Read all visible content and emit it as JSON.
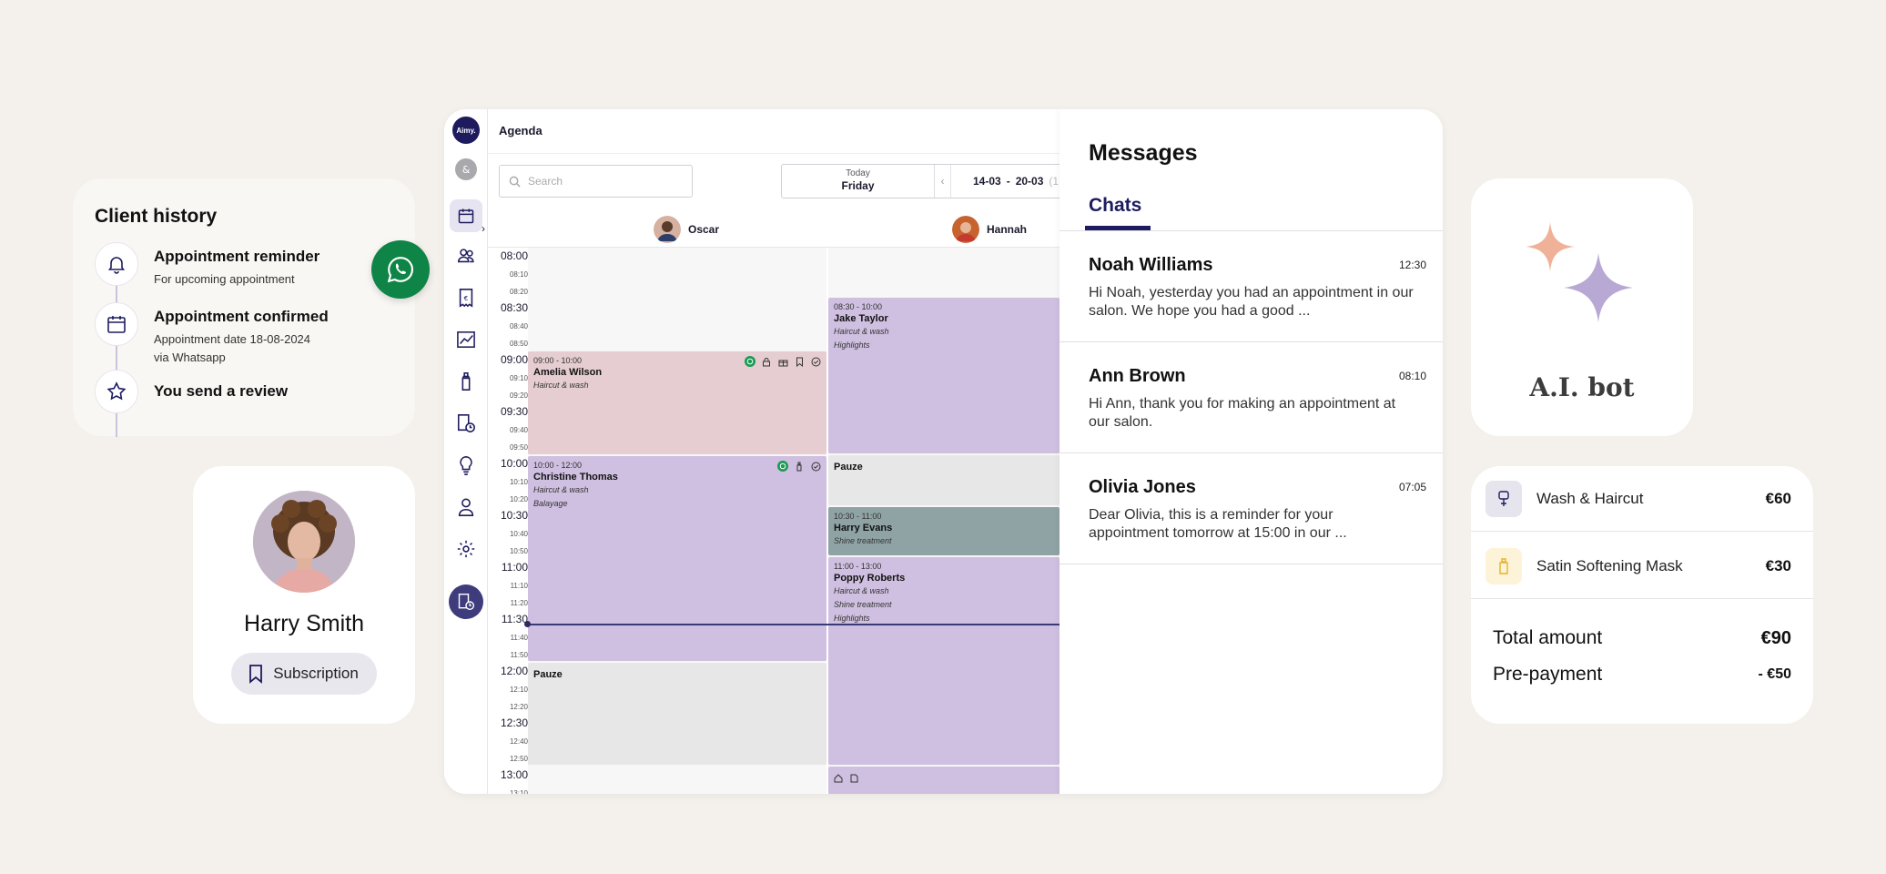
{
  "client_history": {
    "title": "Client history",
    "items": [
      {
        "title": "Appointment reminder",
        "sub": "For upcoming appointment",
        "icon": "bell-icon"
      },
      {
        "title": "Appointment confirmed",
        "sub": "Appointment date 18-08-2024",
        "sub2": "via Whatsapp",
        "icon": "calendar-icon"
      },
      {
        "title": "You send a review",
        "icon": "star-icon"
      }
    ]
  },
  "profile": {
    "name": "Harry Smith",
    "subscription_label": "Subscription"
  },
  "agenda": {
    "logo": "Aimy.",
    "title": "Agenda",
    "search_placeholder": "Search",
    "today_label": "Today",
    "today_day": "Friday",
    "range_start": "14-03",
    "range_sep": "-",
    "range_end": "20-03",
    "range_extra": "(1",
    "staff": [
      {
        "name": "Oscar"
      },
      {
        "name": "Hannah"
      }
    ],
    "times": [
      "08:00",
      "08:10",
      "08:20",
      "08:30",
      "08:40",
      "08:50",
      "09:00",
      "09:10",
      "09:20",
      "09:30",
      "09:40",
      "09:50",
      "10:00",
      "10:10",
      "10:20",
      "10:30",
      "10:40",
      "10:50",
      "11:00",
      "11:10",
      "11:20",
      "11:30",
      "11:40",
      "11:50",
      "12:00",
      "12:10",
      "12:20",
      "12:30",
      "12:40",
      "12:50",
      "13:00",
      "13:10"
    ],
    "appointments": {
      "amelia": {
        "time": "09:00 - 10:00",
        "name": "Amelia Wilson",
        "services": [
          "Haircut & wash"
        ]
      },
      "christine": {
        "time": "10:00 - 12:00",
        "name": "Christine Thomas",
        "services": [
          "Haircut & wash",
          "Balayage"
        ]
      },
      "pauze1": {
        "name": "Pauze"
      },
      "jake": {
        "time": "08:30 - 10:00",
        "name": "Jake Taylor",
        "services": [
          "Haircut & wash",
          "Highlights"
        ]
      },
      "pauze2": {
        "name": "Pauze"
      },
      "harry": {
        "time": "10:30 - 11:00",
        "name": "Harry Evans",
        "services": [
          "Shine treatment"
        ]
      },
      "poppy": {
        "time": "11:00 - 13:00",
        "name": "Poppy Roberts",
        "services": [
          "Haircut & wash",
          "Shine treatment",
          "Highlights"
        ]
      }
    },
    "colors": {
      "pink": "#e5cdd1",
      "lavender": "#cfbfe0",
      "teal": "#8fa3a5",
      "pauze": "#e7e7e7"
    }
  },
  "messages": {
    "title": "Messages",
    "tab": "Chats",
    "chats": [
      {
        "name": "Noah Williams",
        "time": "12:30",
        "preview": "Hi Noah, yesterday you had an appointment in our salon. We hope you had a good ..."
      },
      {
        "name": "Ann Brown",
        "time": "08:10",
        "preview": "Hi Ann, thank you for making an appointment at our salon."
      },
      {
        "name": "Olivia Jones",
        "time": "07:05",
        "preview": "Dear Olivia, this is a reminder for your appointment tomorrow at 15:00 in our ..."
      }
    ]
  },
  "ai_bot": {
    "label": "A.I. bot",
    "colors": {
      "peach": "#efb197",
      "lavender": "#b7a8d4"
    }
  },
  "receipt": {
    "items": [
      {
        "name": "Wash & Haircut",
        "price": "€60",
        "icon": "hair-dryer-icon"
      },
      {
        "name": "Satin Softening Mask",
        "price": "€30",
        "icon": "bottle-icon"
      }
    ],
    "total_label": "Total amount",
    "total_value": "€90",
    "prepay_label": "Pre-payment",
    "prepay_value": "- €50"
  }
}
